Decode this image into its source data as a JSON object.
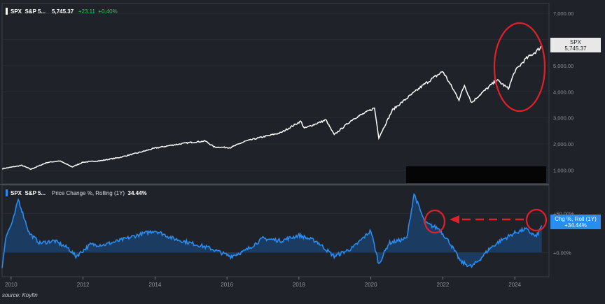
{
  "source": "source: Koyfin",
  "colors": {
    "background": "#1f2228",
    "price_line": "#ffffff",
    "change_line": "#2b8cf0",
    "change_fill": "#1b3d63",
    "positive": "#3cc15b",
    "annotation": "#e0202a",
    "grid": "#2d3138",
    "axis_text": "#8d939c"
  },
  "top_panel": {
    "ticker": "SPX",
    "name": "S&P 5...",
    "price": "5,745.37",
    "change": "+23.11",
    "change_pct": "+0.40%",
    "price_tag_ticker": "SPX",
    "price_tag_value": "5,745.37"
  },
  "bottom_panel": {
    "ticker": "SPX",
    "name": "S&P 5...",
    "indicator": "Price Change %, Rolling (1Y)",
    "indicator_value": "34.44%",
    "tag_line1": "Chg %, Roll (1Y)",
    "tag_line2": "+34.44%"
  },
  "chart_data": [
    {
      "type": "line",
      "series": [
        {
          "values": [
            {
              "x": 2009.75,
              "y": 1050
            },
            {
              "x": 2010.3,
              "y": 1180
            },
            {
              "x": 2010.55,
              "y": 1030
            },
            {
              "x": 2011.0,
              "y": 1290
            },
            {
              "x": 2011.35,
              "y": 1350
            },
            {
              "x": 2011.7,
              "y": 1120
            },
            {
              "x": 2012.0,
              "y": 1300
            },
            {
              "x": 2012.5,
              "y": 1360
            },
            {
              "x": 2013.0,
              "y": 1480
            },
            {
              "x": 2013.5,
              "y": 1650
            },
            {
              "x": 2014.0,
              "y": 1840
            },
            {
              "x": 2014.5,
              "y": 1960
            },
            {
              "x": 2015.0,
              "y": 2060
            },
            {
              "x": 2015.4,
              "y": 2110
            },
            {
              "x": 2015.65,
              "y": 1880
            },
            {
              "x": 2016.1,
              "y": 1860
            },
            {
              "x": 2016.5,
              "y": 2100
            },
            {
              "x": 2017.0,
              "y": 2270
            },
            {
              "x": 2017.5,
              "y": 2430
            },
            {
              "x": 2018.05,
              "y": 2870
            },
            {
              "x": 2018.15,
              "y": 2600
            },
            {
              "x": 2018.75,
              "y": 2920
            },
            {
              "x": 2018.98,
              "y": 2350
            },
            {
              "x": 2019.5,
              "y": 2950
            },
            {
              "x": 2020.1,
              "y": 3380
            },
            {
              "x": 2020.22,
              "y": 2240
            },
            {
              "x": 2020.6,
              "y": 3300
            },
            {
              "x": 2021.0,
              "y": 3750
            },
            {
              "x": 2021.5,
              "y": 4300
            },
            {
              "x": 2022.0,
              "y": 4780
            },
            {
              "x": 2022.45,
              "y": 3700
            },
            {
              "x": 2022.6,
              "y": 4250
            },
            {
              "x": 2022.8,
              "y": 3580
            },
            {
              "x": 2023.0,
              "y": 3850
            },
            {
              "x": 2023.5,
              "y": 4450
            },
            {
              "x": 2023.82,
              "y": 4120
            },
            {
              "x": 2024.0,
              "y": 4780
            },
            {
              "x": 2024.3,
              "y": 5250
            },
            {
              "x": 2024.6,
              "y": 5550
            },
            {
              "x": 2024.75,
              "y": 5745
            }
          ]
        }
      ],
      "ylim": [
        500,
        7300
      ],
      "xlim": [
        2009.75,
        2024.95
      ],
      "yticks": [
        "1,000.00",
        "2,000.00",
        "3,000.00",
        "4,000.00",
        "5,000.00",
        "6,000.00",
        "7,000.00"
      ],
      "ytick_values": [
        1000,
        2000,
        3000,
        4000,
        5000,
        6000,
        7000
      ]
    },
    {
      "type": "area",
      "series": [
        {
          "values": [
            {
              "x": 2009.75,
              "y": -20
            },
            {
              "x": 2009.85,
              "y": 20
            },
            {
              "x": 2010.05,
              "y": 40
            },
            {
              "x": 2010.2,
              "y": 68
            },
            {
              "x": 2010.5,
              "y": 25
            },
            {
              "x": 2010.8,
              "y": 12
            },
            {
              "x": 2011.2,
              "y": 15
            },
            {
              "x": 2011.6,
              "y": 5
            },
            {
              "x": 2011.8,
              "y": -5
            },
            {
              "x": 2012.2,
              "y": 10
            },
            {
              "x": 2012.6,
              "y": 10
            },
            {
              "x": 2013.0,
              "y": 15
            },
            {
              "x": 2013.5,
              "y": 22
            },
            {
              "x": 2014.0,
              "y": 28
            },
            {
              "x": 2014.5,
              "y": 18
            },
            {
              "x": 2015.0,
              "y": 12
            },
            {
              "x": 2015.5,
              "y": 6
            },
            {
              "x": 2016.1,
              "y": -5
            },
            {
              "x": 2016.5,
              "y": 2
            },
            {
              "x": 2017.0,
              "y": 18
            },
            {
              "x": 2017.5,
              "y": 15
            },
            {
              "x": 2018.0,
              "y": 22
            },
            {
              "x": 2018.5,
              "y": 14
            },
            {
              "x": 2018.98,
              "y": -5
            },
            {
              "x": 2019.5,
              "y": 6
            },
            {
              "x": 2020.0,
              "y": 28
            },
            {
              "x": 2020.22,
              "y": -15
            },
            {
              "x": 2020.5,
              "y": 12
            },
            {
              "x": 2021.0,
              "y": 18
            },
            {
              "x": 2021.2,
              "y": 75
            },
            {
              "x": 2021.5,
              "y": 38
            },
            {
              "x": 2021.9,
              "y": 30
            },
            {
              "x": 2022.2,
              "y": 12
            },
            {
              "x": 2022.5,
              "y": -12
            },
            {
              "x": 2022.8,
              "y": -18
            },
            {
              "x": 2023.0,
              "y": -10
            },
            {
              "x": 2023.3,
              "y": 5
            },
            {
              "x": 2023.6,
              "y": 15
            },
            {
              "x": 2024.0,
              "y": 25
            },
            {
              "x": 2024.3,
              "y": 30
            },
            {
              "x": 2024.6,
              "y": 20
            },
            {
              "x": 2024.75,
              "y": 34.44
            }
          ]
        }
      ],
      "ylim": [
        -30,
        85
      ],
      "xlim": [
        2009.75,
        2024.95
      ],
      "yticks": [
        "+0.00%",
        "+50.00%"
      ],
      "ytick_values": [
        0,
        50
      ],
      "xticks": [
        "2010",
        "2012",
        "2014",
        "2016",
        "2018",
        "2020",
        "2022",
        "2024"
      ],
      "xtick_values": [
        2010,
        2012,
        2014,
        2016,
        2018,
        2020,
        2022,
        2024
      ]
    }
  ]
}
